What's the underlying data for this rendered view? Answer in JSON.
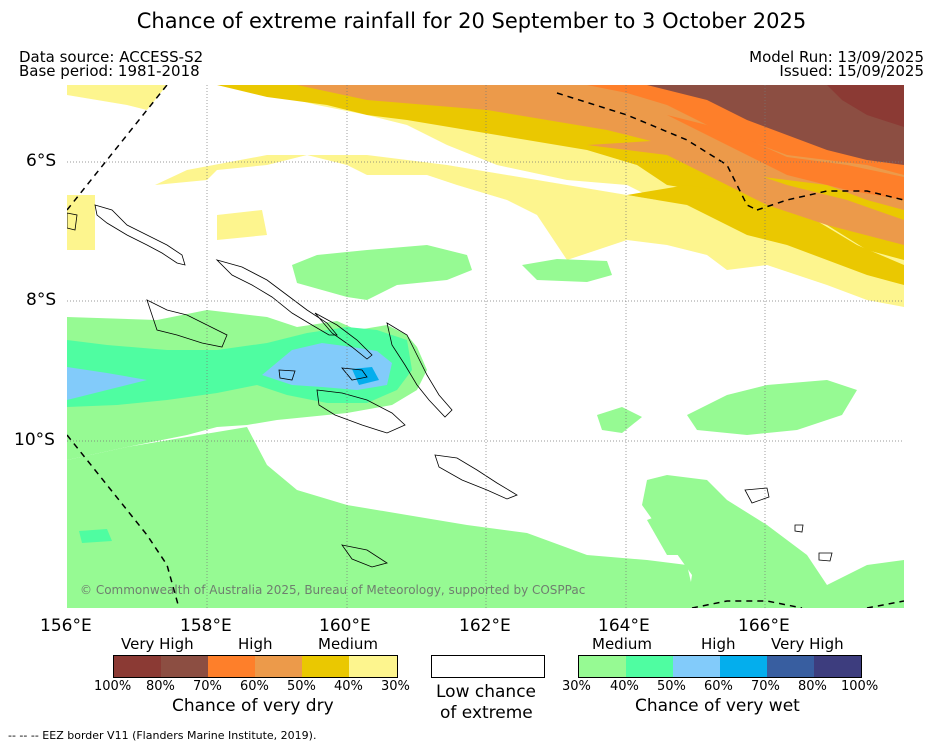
{
  "title": "Chance of extreme rainfall for 20 September to 3 October 2025",
  "data_source": "Data source: ACCESS-S2",
  "base_period": "Base period: 1981-2018",
  "model_run": "Model Run: 13/09/2025",
  "issued": "Issued: 15/09/2025",
  "map": {
    "lat_labels": [
      "6°S",
      "8°S",
      "10°S"
    ],
    "lon_labels": [
      "156°E",
      "158°E",
      "160°E",
      "162°E",
      "164°E",
      "166°E"
    ],
    "copyright": "© Commonwealth of Australia 2025, Bureau of Meteorology, supported by COSPPac",
    "eez_legend": "-- -- -- EEZ border V11 (Flanders Marine Institute, 2019)."
  },
  "legend": {
    "dry": {
      "categories": [
        "Very High",
        "High",
        "Medium"
      ],
      "ticks": [
        "100%",
        "80%",
        "70%",
        "60%",
        "50%",
        "40%",
        "30%"
      ],
      "colors": [
        "#8b3a34",
        "#8c4e42",
        "#fe7f2a",
        "#ec9a4a",
        "#eac801",
        "#fdf58e"
      ],
      "caption": "Chance of very dry"
    },
    "low": {
      "caption_line1": "Low chance",
      "caption_line2": "of extreme",
      "color": "#ffffff"
    },
    "wet": {
      "categories": [
        "Medium",
        "High",
        "Very High"
      ],
      "ticks": [
        "30%",
        "40%",
        "50%",
        "60%",
        "70%",
        "80%",
        "100%"
      ],
      "colors": [
        "#96fa93",
        "#4ffda1",
        "#82cbfa",
        "#04aeed",
        "#385ea0",
        "#3d3d7e"
      ],
      "caption": "Chance of very wet"
    }
  }
}
